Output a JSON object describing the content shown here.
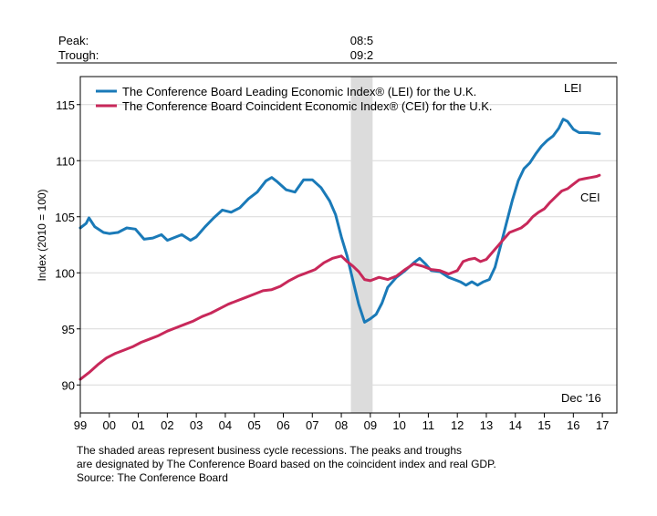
{
  "chart_data": {
    "type": "line",
    "ylabel": "Index (2010 = 100)",
    "ylim": [
      87.5,
      117.5
    ],
    "yticks": [
      90,
      95,
      100,
      105,
      110,
      115
    ],
    "xlim": [
      1999.0,
      2017.5
    ],
    "xtick_labels": [
      "99",
      "00",
      "01",
      "02",
      "03",
      "04",
      "05",
      "06",
      "07",
      "08",
      "09",
      "10",
      "11",
      "12",
      "13",
      "14",
      "15",
      "16",
      "17"
    ],
    "grid": true,
    "legend": "top-left",
    "recession": {
      "peak_label": "Peak:",
      "trough_label": "Trough:",
      "peak": "08:5",
      "trough": "09:2",
      "start": 2008.33,
      "end": 2009.08
    },
    "end_note": "Dec '16",
    "series": [
      {
        "name": "The Conference Board Leading Economic Index® (LEI) for the U.K.",
        "short_label": "LEI",
        "color": "#1a7ab8",
        "points": [
          [
            1999.0,
            104.0
          ],
          [
            1999.2,
            104.4
          ],
          [
            1999.3,
            104.9
          ],
          [
            1999.5,
            104.1
          ],
          [
            1999.8,
            103.6
          ],
          [
            2000.0,
            103.5
          ],
          [
            2000.3,
            103.6
          ],
          [
            2000.6,
            104.0
          ],
          [
            2000.9,
            103.9
          ],
          [
            2001.2,
            103.0
          ],
          [
            2001.5,
            103.1
          ],
          [
            2001.8,
            103.4
          ],
          [
            2002.0,
            102.9
          ],
          [
            2002.2,
            103.1
          ],
          [
            2002.5,
            103.4
          ],
          [
            2002.8,
            102.9
          ],
          [
            2003.0,
            103.2
          ],
          [
            2003.3,
            104.1
          ],
          [
            2003.6,
            104.9
          ],
          [
            2003.9,
            105.6
          ],
          [
            2004.2,
            105.4
          ],
          [
            2004.5,
            105.8
          ],
          [
            2004.8,
            106.6
          ],
          [
            2005.1,
            107.2
          ],
          [
            2005.4,
            108.2
          ],
          [
            2005.6,
            108.5
          ],
          [
            2005.8,
            108.1
          ],
          [
            2006.1,
            107.4
          ],
          [
            2006.4,
            107.2
          ],
          [
            2006.7,
            108.3
          ],
          [
            2007.0,
            108.3
          ],
          [
            2007.3,
            107.6
          ],
          [
            2007.6,
            106.4
          ],
          [
            2007.8,
            105.2
          ],
          [
            2008.0,
            103.2
          ],
          [
            2008.2,
            101.5
          ],
          [
            2008.4,
            99.3
          ],
          [
            2008.6,
            97.2
          ],
          [
            2008.8,
            95.6
          ],
          [
            2009.0,
            95.9
          ],
          [
            2009.2,
            96.3
          ],
          [
            2009.4,
            97.3
          ],
          [
            2009.6,
            98.7
          ],
          [
            2009.9,
            99.6
          ],
          [
            2010.2,
            100.2
          ],
          [
            2010.5,
            100.9
          ],
          [
            2010.7,
            101.3
          ],
          [
            2010.9,
            100.8
          ],
          [
            2011.1,
            100.2
          ],
          [
            2011.4,
            100.1
          ],
          [
            2011.7,
            99.6
          ],
          [
            2011.9,
            99.4
          ],
          [
            2012.1,
            99.2
          ],
          [
            2012.3,
            98.9
          ],
          [
            2012.5,
            99.2
          ],
          [
            2012.7,
            98.9
          ],
          [
            2012.9,
            99.2
          ],
          [
            2013.1,
            99.4
          ],
          [
            2013.3,
            100.5
          ],
          [
            2013.5,
            102.5
          ],
          [
            2013.7,
            104.5
          ],
          [
            2013.9,
            106.5
          ],
          [
            2014.1,
            108.2
          ],
          [
            2014.3,
            109.3
          ],
          [
            2014.5,
            109.8
          ],
          [
            2014.7,
            110.6
          ],
          [
            2014.9,
            111.3
          ],
          [
            2015.1,
            111.8
          ],
          [
            2015.3,
            112.2
          ],
          [
            2015.5,
            112.9
          ],
          [
            2015.65,
            113.7
          ],
          [
            2015.8,
            113.5
          ],
          [
            2016.0,
            112.8
          ],
          [
            2016.2,
            112.5
          ],
          [
            2016.5,
            112.5
          ],
          [
            2016.9,
            112.4
          ]
        ]
      },
      {
        "name": "The Conference Board Coincident Economic Index® (CEI) for the U.K.",
        "short_label": "CEI",
        "color": "#c8285a",
        "points": [
          [
            1999.0,
            90.5
          ],
          [
            1999.3,
            91.1
          ],
          [
            1999.6,
            91.8
          ],
          [
            1999.9,
            92.4
          ],
          [
            2000.2,
            92.8
          ],
          [
            2000.5,
            93.1
          ],
          [
            2000.8,
            93.4
          ],
          [
            2001.1,
            93.8
          ],
          [
            2001.4,
            94.1
          ],
          [
            2001.7,
            94.4
          ],
          [
            2002.0,
            94.8
          ],
          [
            2002.3,
            95.1
          ],
          [
            2002.6,
            95.4
          ],
          [
            2002.9,
            95.7
          ],
          [
            2003.2,
            96.1
          ],
          [
            2003.5,
            96.4
          ],
          [
            2003.8,
            96.8
          ],
          [
            2004.1,
            97.2
          ],
          [
            2004.4,
            97.5
          ],
          [
            2004.7,
            97.8
          ],
          [
            2005.0,
            98.1
          ],
          [
            2005.3,
            98.4
          ],
          [
            2005.6,
            98.5
          ],
          [
            2005.9,
            98.8
          ],
          [
            2006.2,
            99.3
          ],
          [
            2006.5,
            99.7
          ],
          [
            2006.8,
            100.0
          ],
          [
            2007.1,
            100.3
          ],
          [
            2007.4,
            100.9
          ],
          [
            2007.7,
            101.3
          ],
          [
            2008.0,
            101.5
          ],
          [
            2008.2,
            101.0
          ],
          [
            2008.4,
            100.6
          ],
          [
            2008.6,
            100.1
          ],
          [
            2008.8,
            99.4
          ],
          [
            2009.0,
            99.3
          ],
          [
            2009.3,
            99.6
          ],
          [
            2009.6,
            99.4
          ],
          [
            2009.9,
            99.7
          ],
          [
            2010.2,
            100.3
          ],
          [
            2010.5,
            100.8
          ],
          [
            2010.8,
            100.6
          ],
          [
            2011.1,
            100.3
          ],
          [
            2011.4,
            100.2
          ],
          [
            2011.7,
            99.9
          ],
          [
            2012.0,
            100.2
          ],
          [
            2012.2,
            101.0
          ],
          [
            2012.4,
            101.2
          ],
          [
            2012.6,
            101.3
          ],
          [
            2012.8,
            101.0
          ],
          [
            2013.0,
            101.2
          ],
          [
            2013.2,
            101.8
          ],
          [
            2013.4,
            102.4
          ],
          [
            2013.6,
            103.0
          ],
          [
            2013.8,
            103.6
          ],
          [
            2014.0,
            103.8
          ],
          [
            2014.2,
            104.0
          ],
          [
            2014.4,
            104.4
          ],
          [
            2014.6,
            105.0
          ],
          [
            2014.8,
            105.4
          ],
          [
            2015.0,
            105.7
          ],
          [
            2015.2,
            106.3
          ],
          [
            2015.4,
            106.8
          ],
          [
            2015.6,
            107.3
          ],
          [
            2015.8,
            107.5
          ],
          [
            2016.0,
            107.9
          ],
          [
            2016.2,
            108.3
          ],
          [
            2016.4,
            108.4
          ],
          [
            2016.6,
            108.5
          ],
          [
            2016.8,
            108.6
          ],
          [
            2016.9,
            108.7
          ]
        ]
      }
    ]
  },
  "footnote": {
    "line1": "The shaded areas represent business cycle recessions. The peaks and troughs",
    "line2": "are designated by The Conference Board based on the coincident index and real GDP.",
    "line3": "Source: The Conference Board"
  }
}
